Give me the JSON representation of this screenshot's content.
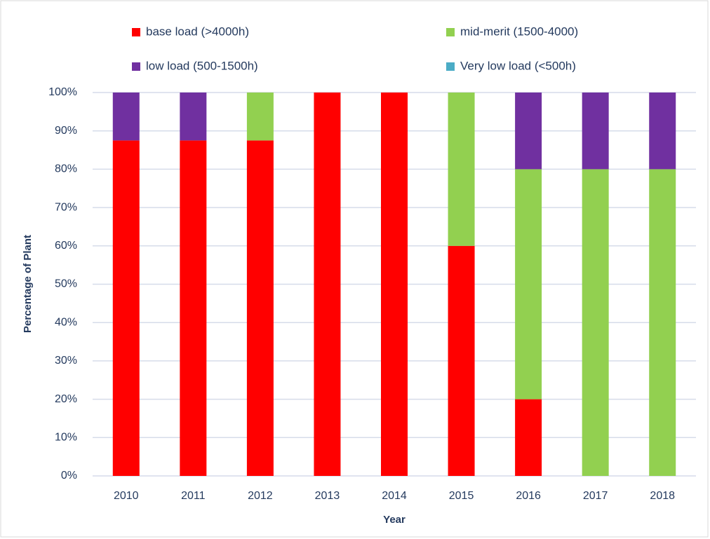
{
  "chart_data": {
    "type": "stacked_bar",
    "x_label": "Year",
    "y_label": "Percentage of Plant",
    "categories": [
      "2010",
      "2011",
      "2012",
      "2013",
      "2014",
      "2015",
      "2016",
      "2017",
      "2018"
    ],
    "series": [
      {
        "name": "base load (>4000h)",
        "color": "#ff0000",
        "values": [
          87.5,
          87.5,
          87.5,
          100,
          100,
          60,
          20,
          0,
          0
        ]
      },
      {
        "name": "mid-merit (1500-4000)",
        "color": "#92d050",
        "values": [
          0,
          0,
          12.5,
          0,
          0,
          40,
          60,
          80,
          80
        ]
      },
      {
        "name": "low load (500-1500h)",
        "color": "#7030a0",
        "values": [
          12.5,
          12.5,
          0,
          0,
          0,
          0,
          20,
          20,
          20
        ]
      },
      {
        "name": "Very low load (<500h)",
        "color": "#4bacc6",
        "values": [
          0,
          0,
          0,
          0,
          0,
          0,
          0,
          0,
          0
        ]
      }
    ],
    "ylim": [
      0,
      100
    ],
    "yticks": [
      {
        "value": 0,
        "label": "0%"
      },
      {
        "value": 10,
        "label": "10%"
      },
      {
        "value": 20,
        "label": "20%"
      },
      {
        "value": 30,
        "label": "30%"
      },
      {
        "value": 40,
        "label": "40%"
      },
      {
        "value": 50,
        "label": "50%"
      },
      {
        "value": 60,
        "label": "60%"
      },
      {
        "value": 70,
        "label": "70%"
      },
      {
        "value": 80,
        "label": "80%"
      },
      {
        "value": 90,
        "label": "90%"
      },
      {
        "value": 100,
        "label": "100%"
      }
    ],
    "grid": true
  }
}
